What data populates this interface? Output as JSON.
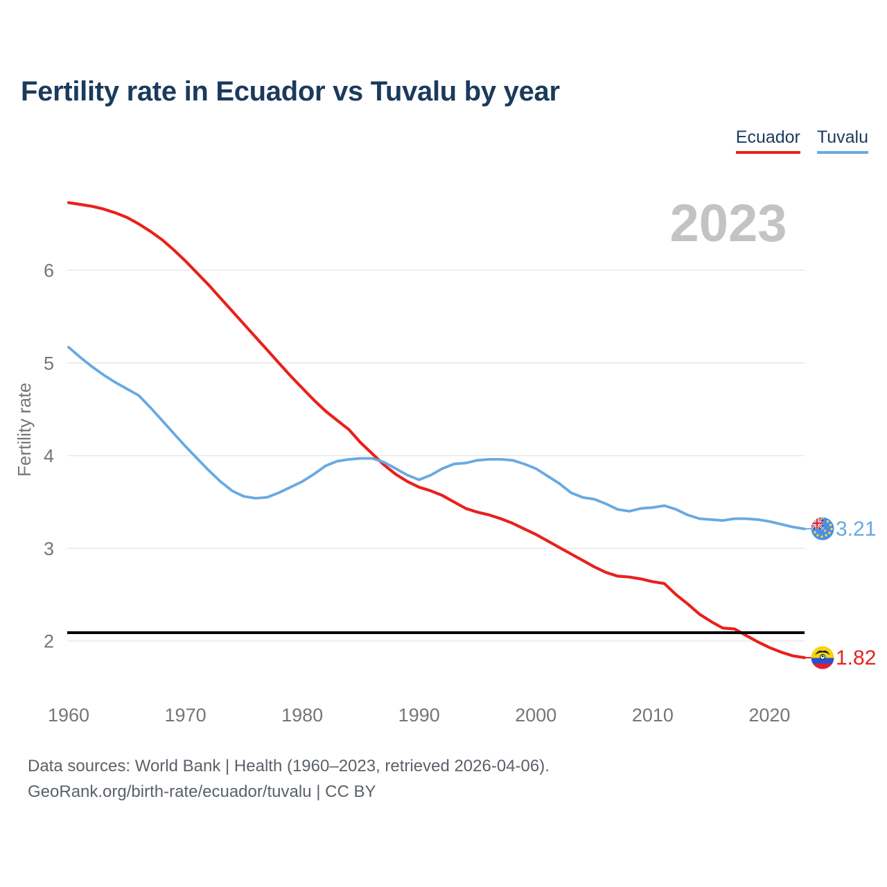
{
  "header": {
    "title": "Fertility rate in Ecuador vs Tuvalu by year"
  },
  "legend": {
    "items": [
      {
        "label": "Ecuador",
        "color": "#e8211d"
      },
      {
        "label": "Tuvalu",
        "color": "#68a9e2"
      }
    ]
  },
  "watermark": "2023",
  "footer": {
    "line1": "Data sources: World Bank | Health (1960–2023, retrieved 2026-04-06).",
    "line2": "GeoRank.org/birth-rate/ecuador/tuvalu | CC BY"
  },
  "chart_data": {
    "type": "line",
    "title": "Fertility rate in Ecuador vs Tuvalu by year",
    "xlabel": "",
    "ylabel": "Fertility rate",
    "x_ticks": [
      1960,
      1970,
      1980,
      1990,
      2000,
      2010,
      2020
    ],
    "y_ticks": [
      2,
      3,
      4,
      5,
      6
    ],
    "xlim": [
      1960,
      2023
    ],
    "ylim": [
      1.7,
      6.9
    ],
    "grid": "horizontal",
    "legend_position": "top-right",
    "watermark": "2023",
    "reference_line": {
      "value": 2.09,
      "color": "#000000"
    },
    "years": [
      1960,
      1961,
      1962,
      1963,
      1964,
      1965,
      1966,
      1967,
      1968,
      1969,
      1970,
      1971,
      1972,
      1973,
      1974,
      1975,
      1976,
      1977,
      1978,
      1979,
      1980,
      1981,
      1982,
      1983,
      1984,
      1985,
      1986,
      1987,
      1988,
      1989,
      1990,
      1991,
      1992,
      1993,
      1994,
      1995,
      1996,
      1997,
      1998,
      1999,
      2000,
      2001,
      2002,
      2003,
      2004,
      2005,
      2006,
      2007,
      2008,
      2009,
      2010,
      2011,
      2012,
      2013,
      2014,
      2015,
      2016,
      2017,
      2018,
      2019,
      2020,
      2021,
      2022,
      2023
    ],
    "series": [
      {
        "name": "Ecuador",
        "color": "#e8211d",
        "end_label": "1.82",
        "flag_icon": "ecuador-flag-icon",
        "values": [
          6.73,
          6.71,
          6.69,
          6.66,
          6.62,
          6.57,
          6.5,
          6.42,
          6.33,
          6.22,
          6.1,
          5.97,
          5.84,
          5.7,
          5.56,
          5.42,
          5.28,
          5.14,
          5.0,
          4.86,
          4.73,
          4.6,
          4.48,
          4.38,
          4.28,
          4.14,
          4.02,
          3.9,
          3.8,
          3.72,
          3.66,
          3.62,
          3.57,
          3.5,
          3.43,
          3.39,
          3.36,
          3.32,
          3.27,
          3.21,
          3.15,
          3.08,
          3.01,
          2.94,
          2.87,
          2.8,
          2.74,
          2.7,
          2.69,
          2.67,
          2.64,
          2.62,
          2.5,
          2.4,
          2.29,
          2.21,
          2.14,
          2.13,
          2.06,
          1.99,
          1.93,
          1.88,
          1.84,
          1.82
        ]
      },
      {
        "name": "Tuvalu",
        "color": "#68a9e2",
        "end_label": "3.21",
        "flag_icon": "tuvalu-flag-icon",
        "values": [
          5.17,
          5.06,
          4.96,
          4.87,
          4.79,
          4.72,
          4.65,
          4.52,
          4.38,
          4.24,
          4.1,
          3.97,
          3.84,
          3.72,
          3.62,
          3.56,
          3.54,
          3.55,
          3.6,
          3.66,
          3.72,
          3.8,
          3.89,
          3.94,
          3.96,
          3.97,
          3.97,
          3.93,
          3.86,
          3.79,
          3.74,
          3.79,
          3.86,
          3.91,
          3.92,
          3.95,
          3.96,
          3.96,
          3.95,
          3.91,
          3.86,
          3.78,
          3.7,
          3.6,
          3.55,
          3.53,
          3.48,
          3.42,
          3.4,
          3.43,
          3.44,
          3.46,
          3.42,
          3.36,
          3.32,
          3.31,
          3.3,
          3.32,
          3.32,
          3.31,
          3.29,
          3.26,
          3.23,
          3.21
        ]
      }
    ]
  }
}
